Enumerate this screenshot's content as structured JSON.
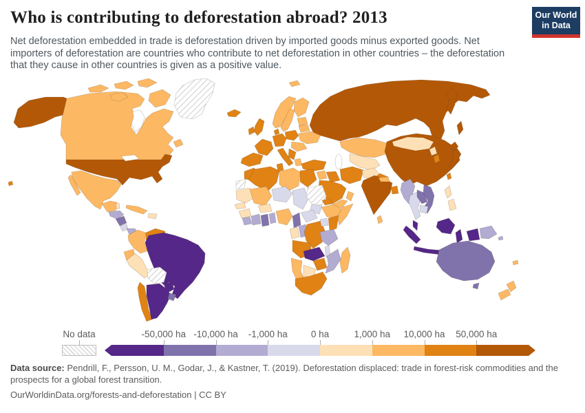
{
  "header": {
    "title": "Who is contributing to deforestation abroad? 2013",
    "subtitle": "Net deforestation embedded in trade is deforestation driven by imported goods minus exported goods. Net importers of deforestation are countries who contribute to net deforestation in other countries – the deforestation that they cause in other countries is given as a positive value."
  },
  "logo": {
    "line1": "Our World",
    "line2": "in Data",
    "bg_color": "#1d3d63",
    "stripe_color": "#d0342c"
  },
  "legend": {
    "no_data_label": "No data",
    "tick_labels": [
      "-50,000 ha",
      "-10,000 ha",
      "-1,000 ha",
      "0 ha",
      "1,000 ha",
      "10,000 ha",
      "50,000 ha"
    ]
  },
  "footer": {
    "source_label": "Data source:",
    "source_text": " Pendrill, F., Persson, U. M., Godar, J., & Kastner, T. (2019). Deforestation displaced: trade in forest-risk commodities and the prospects for a global forest transition.",
    "link_line": "OurWorldinData.org/forests-and-deforestation | CC BY"
  },
  "chart_data": {
    "type": "choropleth-map",
    "title": "Who is contributing to deforestation abroad?",
    "year": 2013,
    "unit": "ha",
    "bin_edges": [
      -50000,
      -10000,
      -1000,
      0,
      1000,
      10000,
      50000
    ],
    "bin_labels": [
      "< -50,000 ha",
      "-50,000 to -10,000 ha",
      "-10,000 to -1,000 ha",
      "-1,000 to 0 ha",
      "0 to 1,000 ha",
      "1,000 to 10,000 ha",
      "10,000 to 50,000 ha",
      "> 50,000 ha"
    ],
    "bin_colors": [
      "#542788",
      "#8073ac",
      "#b2abd2",
      "#d8daeb",
      "#fee0b6",
      "#fdb863",
      "#e08214",
      "#b35806"
    ],
    "no_data_pattern": "diagonal-hatch",
    "countries": {
      "greenland": "no-data",
      "canada": 5,
      "canada-islands": 5,
      "alaska": 7,
      "usa": 7,
      "hawaii": 6,
      "mexico": 5,
      "guatemala": 5,
      "belize": 4,
      "honduras": 2,
      "nicaragua": 1,
      "costa-rica": 3,
      "panama": 2,
      "cuba": 5,
      "hispaniola": 4,
      "colombia": 5,
      "venezuela": 6,
      "guyanas": 3,
      "ecuador": 5,
      "peru": 4,
      "brazil": 0,
      "bolivia": "no-data",
      "paraguay": 0,
      "chile": 6,
      "argentina": 0,
      "uruguay": 1,
      "iceland": 6,
      "united-kingdom": 6,
      "ireland": 6,
      "norway": 5,
      "sweden": 5,
      "finland": 5,
      "baltics": 5,
      "denmark": 6,
      "germany": 6,
      "france": 6,
      "iberia": 6,
      "italy": 6,
      "poland": 6,
      "belarus": 5,
      "ukraine": 5,
      "romania-hungary": 5,
      "balkans": 6,
      "greece": 5,
      "russia": 7,
      "svalbard": 5,
      "kazakhstan": 5,
      "central-asia": 4,
      "turkey": 6,
      "syria": 5,
      "iraq": 6,
      "iran": 6,
      "saudi-arabia": 6,
      "yemen": 5,
      "oman": 5,
      "afghanistan": 4,
      "pakistan": 6,
      "china": 7,
      "mongolia": 4,
      "india": 7,
      "nepal": 5,
      "bangladesh": 6,
      "sri-lanka": 5,
      "myanmar": 2,
      "thailand": 3,
      "laos": 1,
      "vietnam": 1,
      "cambodia": 3,
      "malaysia": 0,
      "indonesia": 0,
      "papua-new-guinea": 2,
      "philippines": 4,
      "taiwan": 6,
      "south-korea": 6,
      "north-korea": 4,
      "japan": 7,
      "morocco": 6,
      "western-sahara": "no-data",
      "algeria": 6,
      "tunisia": 6,
      "libya": 5,
      "egypt": 6,
      "mauritania": 4,
      "mali": 5,
      "niger": 3,
      "chad": 3,
      "sudan": "no-data",
      "south-sudan": 3,
      "eritrea": 6,
      "ethiopia": 5,
      "somalia": 5,
      "senegal": 4,
      "guinea": 4,
      "liberia": 2,
      "ivory-coast": 2,
      "ghana": 1,
      "togo-benin": 2,
      "burkina-faso": 4,
      "nigeria": 5,
      "cameroon": 1,
      "central-african-republic": 3,
      "gabon": 4,
      "congo": 2,
      "drc": 6,
      "uganda": 3,
      "kenya": 6,
      "tanzania": 2,
      "angola": 6,
      "zambia": 0,
      "malawi": 3,
      "mozambique": 2,
      "zimbabwe": 6,
      "botswana": 4,
      "namibia": 5,
      "south-africa": 6,
      "madagascar": 5,
      "australia": 1,
      "new-zealand": 5,
      "new-caledonia": 5,
      "solomon-islands": 2
    }
  }
}
